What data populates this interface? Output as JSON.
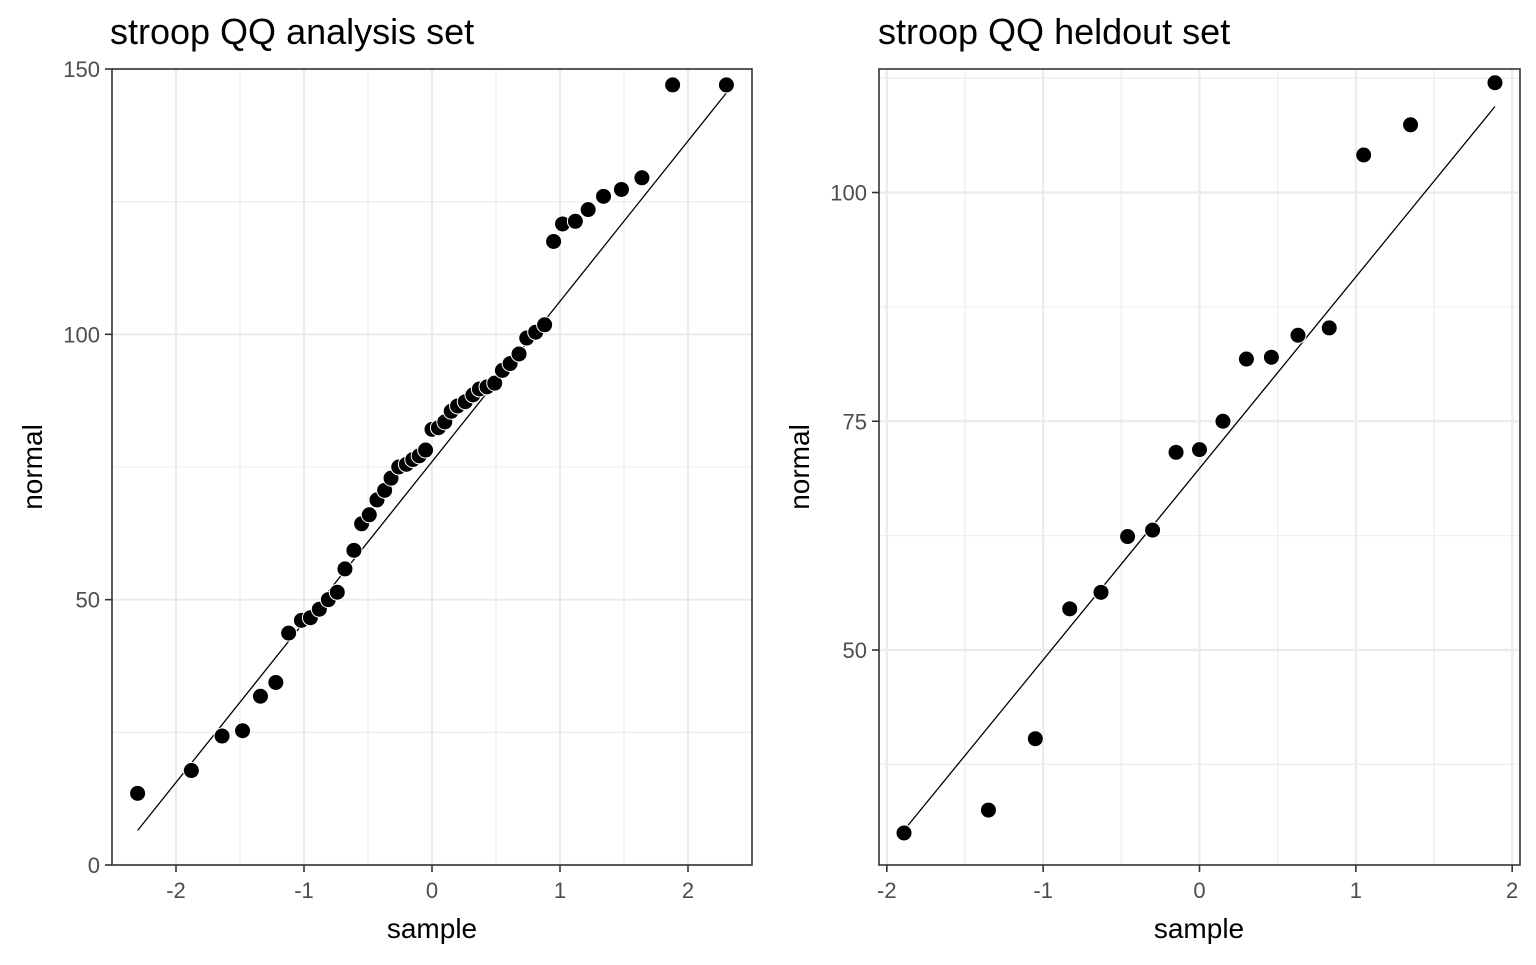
{
  "chart_data": [
    {
      "type": "scatter",
      "title": "stroop QQ analysis set",
      "xlabel": "sample",
      "ylabel": "normal",
      "xlim": [
        -2.5,
        2.5
      ],
      "ylim": [
        0,
        150
      ],
      "x_ticks": [
        -2,
        -1,
        0,
        1,
        2
      ],
      "x_tick_labels": [
        "-2",
        "-1",
        "0",
        "1",
        "2"
      ],
      "y_ticks": [
        0,
        50,
        100,
        150
      ],
      "y_tick_labels": [
        "0",
        "50",
        "100",
        "150"
      ],
      "grid": true,
      "legend": "none",
      "reference_line": {
        "x": [
          -2.3,
          2.3
        ],
        "y": [
          6.5,
          145.5
        ]
      },
      "x": [
        -2.3,
        -1.88,
        -1.64,
        -1.48,
        -1.34,
        -1.22,
        -1.12,
        -1.02,
        -0.95,
        -0.88,
        -0.81,
        -0.74,
        -0.68,
        -0.61,
        -0.55,
        -0.49,
        -0.43,
        -0.37,
        -0.32,
        -0.26,
        -0.2,
        -0.15,
        -0.1,
        -0.05,
        0.0,
        0.05,
        0.1,
        0.15,
        0.2,
        0.26,
        0.32,
        0.37,
        0.43,
        0.49,
        0.55,
        0.61,
        0.68,
        0.74,
        0.81,
        0.88,
        0.95,
        1.02,
        1.12,
        1.22,
        1.34,
        1.48,
        1.64,
        1.88,
        2.3
      ],
      "y": [
        13.5,
        17.8,
        24.3,
        25.3,
        31.8,
        34.4,
        43.7,
        46.1,
        46.6,
        48.2,
        50.0,
        51.4,
        55.8,
        59.3,
        64.3,
        66.0,
        68.8,
        70.6,
        72.9,
        75.0,
        75.5,
        76.4,
        77.1,
        78.2,
        82.1,
        82.4,
        83.5,
        85.5,
        86.5,
        87.3,
        88.6,
        89.7,
        90.1,
        90.8,
        93.2,
        94.5,
        96.3,
        99.3,
        100.4,
        101.8,
        117.5,
        120.8,
        121.3,
        123.5,
        126.0,
        127.3,
        129.5,
        147.0,
        147.0
      ]
    },
    {
      "type": "scatter",
      "title": "stroop QQ heldout set",
      "xlabel": "sample",
      "ylabel": "normal",
      "xlim": [
        -2.05,
        2.05
      ],
      "ylim": [
        26.5,
        113.5
      ],
      "x_ticks": [
        -2,
        -1,
        0,
        1,
        2
      ],
      "x_tick_labels": [
        "-2",
        "-1",
        "0",
        "1",
        "2"
      ],
      "y_ticks": [
        50,
        75,
        100
      ],
      "y_tick_labels": [
        "50",
        "75",
        "100"
      ],
      "grid": true,
      "legend": "none",
      "reference_line": {
        "x": [
          -1.89,
          1.89
        ],
        "y": [
          30.3,
          109.4
        ]
      },
      "x": [
        -1.89,
        -1.35,
        -1.05,
        -0.83,
        -0.63,
        -0.46,
        -0.3,
        -0.15,
        0.0,
        0.15,
        0.3,
        0.46,
        0.63,
        0.83,
        1.05,
        1.35,
        1.89
      ],
      "y": [
        30.0,
        32.5,
        40.3,
        54.5,
        56.3,
        62.4,
        63.1,
        71.6,
        71.9,
        75.0,
        81.8,
        82.0,
        84.4,
        85.2,
        104.1,
        107.4,
        112.0
      ]
    }
  ]
}
